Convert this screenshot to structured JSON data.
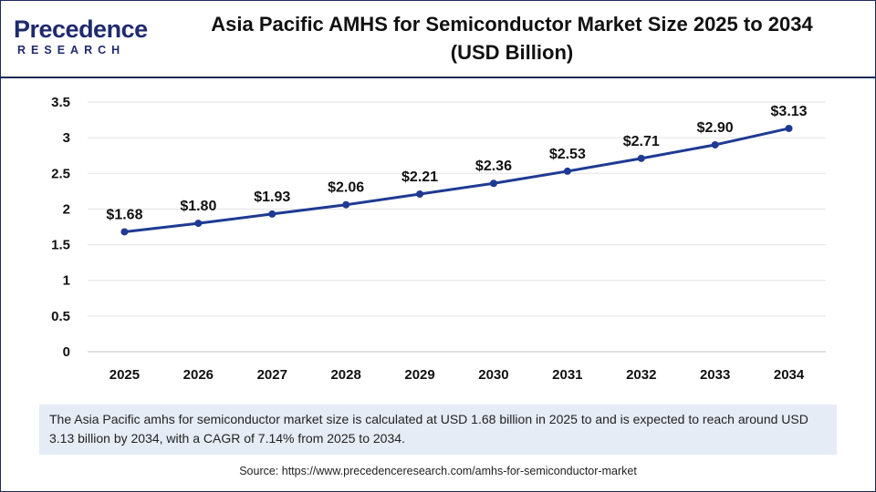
{
  "logo": {
    "main": "Precedence",
    "sub": "RESEARCH"
  },
  "title_line1": "Asia Pacific AMHS for Semiconductor Market Size 2025 to 2034",
  "title_line2": "(USD Billion)",
  "note": "The Asia Pacific amhs for semiconductor market size is calculated at USD 1.68 billion in 2025 to and is expected to reach around USD 3.13 billion by 2034, with a CAGR of 7.14% from 2025 to 2034.",
  "source": "Source: https://www.precedenceresearch.com/amhs-for-semiconductor-market",
  "colors": {
    "line": "#1f3a93",
    "frame": "#1f2a5a",
    "note_bg": "#e6ecf6"
  },
  "chart_data": {
    "type": "line",
    "x": [
      "2025",
      "2026",
      "2027",
      "2028",
      "2029",
      "2030",
      "2031",
      "2032",
      "2033",
      "2034"
    ],
    "series": [
      {
        "values": [
          1.68,
          1.8,
          1.93,
          2.06,
          2.21,
          2.36,
          2.53,
          2.71,
          2.9,
          3.13
        ]
      }
    ],
    "data_labels": [
      "$1.68",
      "$1.80",
      "$1.93",
      "$2.06",
      "$2.21",
      "$2.36",
      "$2.53",
      "$2.71",
      "$2.90",
      "$3.13"
    ],
    "yticks": [
      "0",
      "0.5",
      "1",
      "1.5",
      "2",
      "2.5",
      "3",
      "3.5"
    ],
    "ylim": [
      0,
      3.5
    ],
    "grid": "horizontal",
    "legend": "none"
  }
}
